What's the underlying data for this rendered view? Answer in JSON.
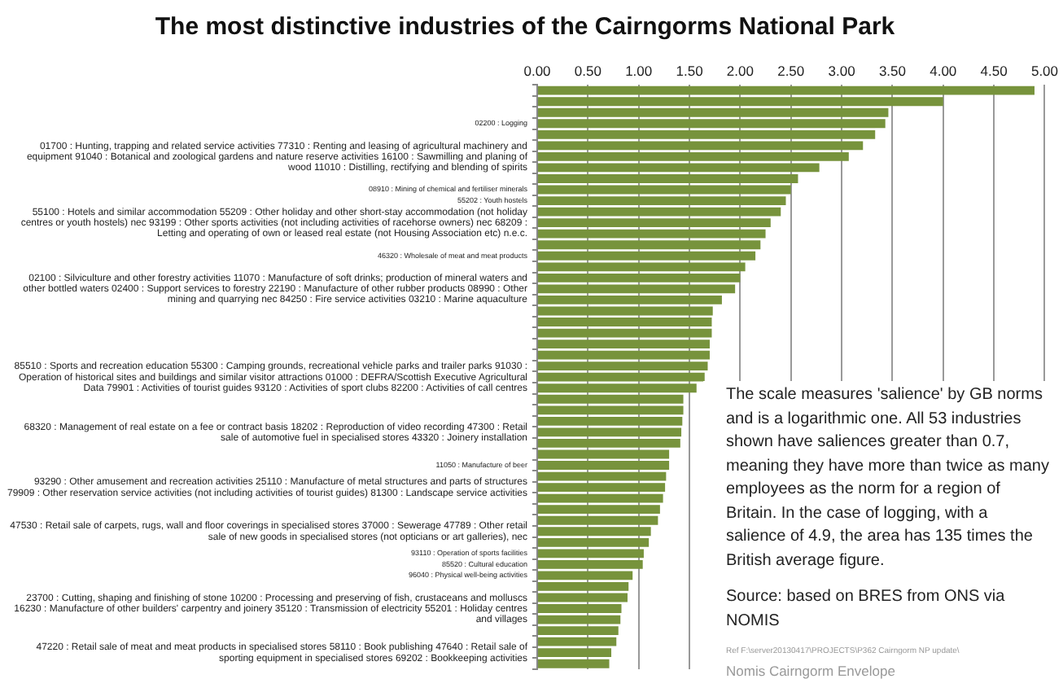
{
  "chart_data": {
    "type": "bar",
    "orientation": "horizontal",
    "title": "The most distinctive industries of the Cairngorms National Park",
    "categories": [
      null,
      null,
      null,
      "02200 : Logging",
      null,
      null,
      "01700 : Hunting, trapping and related service activities 77310 : Renting and leasing of agricultural machinery and equipment 91040 : Botanical and zoological gardens and nature reserve activities 16100 : Sawmilling and planing of wood 11010 : Distilling, rectifying and blending of spirits",
      null,
      null,
      "08910 : Mining of chemical and fertiliser minerals",
      "55202 : Youth hostels",
      null,
      "55100 : Hotels and similar accommodation 55209 : Other holiday and other short-stay accommodation (not holiday centres or youth hostels) nec 93199 : Other sports activities (not including activities of racehorse owners) nec 68209 : Letting and operating of own or leased real estate (not Housing Association etc) n.e.c.",
      null,
      null,
      "46320 : Wholesale of meat and meat products",
      null,
      null,
      "02100 : Silviculture and other forestry activities 11070 : Manufacture of soft drinks; production of mineral waters and other bottled waters 02400 : Support services to forestry 22190 : Manufacture of other rubber products 08990 : Other mining and quarrying nec 84250 : Fire service activities 03210 : Marine aquaculture",
      null,
      null,
      null,
      null,
      null,
      null,
      null,
      "85510 : Sports and recreation education 55300 : Camping grounds, recreational vehicle parks and trailer parks 91030 : Operation of historical sites and buildings and similar visitor attractions 01000 : DEFRA/Scottish Executive Agricultural Data 79901 : Activities of tourist guides 93120 : Activities of sport clubs 82200 : Activities of call centres",
      null,
      null,
      null,
      null,
      "68320 : Management of real estate on a fee or contract basis 18202 : Reproduction of video recording 47300 : Retail sale of automotive fuel in specialised stores 43320 : Joinery installation",
      null,
      null,
      "11050 : Manufacture of beer",
      null,
      "93290 : Other amusement and recreation activities 25110 : Manufacture of metal structures and parts of structures 79909 : Other reservation service activities (not including activities of tourist guides) 81300 : Landscape service activities",
      null,
      null,
      null,
      "47530 : Retail sale of carpets, rugs, wall and floor coverings in specialised stores 37000 : Sewerage 47789 : Other retail sale of new goods in specialised stores (not opticians or art galleries), nec",
      null,
      "93110 : Operation of sports facilities",
      "85520 : Cultural education",
      "96040 : Physical well-being activities",
      null,
      null,
      "23700 : Cutting, shaping and finishing of stone 10200 : Processing and preserving of fish, crustaceans and molluscs 16230 : Manufacture of other builders' carpentry and joinery 35120 : Transmission of electricity 55201 : Holiday centres and villages",
      null,
      null,
      null,
      "47220 : Retail sale of meat and meat products in specialised stores 58110 : Book publishing 47640 : Retail sale of sporting equipment in specialised stores 69202 : Bookkeeping activities",
      null
    ],
    "values": [
      4.9,
      4.0,
      3.46,
      3.43,
      3.33,
      3.21,
      3.07,
      2.78,
      2.57,
      2.5,
      2.45,
      2.4,
      2.3,
      2.25,
      2.2,
      2.15,
      2.05,
      2.0,
      1.95,
      1.82,
      1.73,
      1.72,
      1.72,
      1.7,
      1.7,
      1.68,
      1.65,
      1.57,
      1.44,
      1.44,
      1.43,
      1.42,
      1.41,
      1.3,
      1.3,
      1.27,
      1.26,
      1.24,
      1.21,
      1.19,
      1.12,
      1.1,
      1.05,
      1.04,
      0.94,
      0.9,
      0.89,
      0.83,
      0.82,
      0.8,
      0.78,
      0.73,
      0.71
    ],
    "color": "#77933c",
    "xlim": [
      0,
      5
    ],
    "xticks": [
      {
        "value": 0,
        "label": "0.00"
      },
      {
        "value": 0.5,
        "label": "0.50"
      },
      {
        "value": 1,
        "label": "1.00"
      },
      {
        "value": 1.5,
        "label": "1.50"
      },
      {
        "value": 2,
        "label": "2.00"
      },
      {
        "value": 2.5,
        "label": "2.50"
      },
      {
        "value": 3,
        "label": "3.00"
      },
      {
        "value": 3.5,
        "label": "3.50"
      },
      {
        "value": 4,
        "label": "4.00"
      },
      {
        "value": 4.5,
        "label": "4.50"
      },
      {
        "value": 5,
        "label": "5.00"
      }
    ],
    "grid": "x",
    "annotations": [
      "The scale measures 'salience' by GB norms and is a logarithmic one. All 53 industries shown have saliences greater than 0.7, meaning they have more than twice as many employees as the norm for a region of Britain. In the case of logging, with a salience of 4.9, the area has 135 times the British average figure.",
      "Source: based on BRES from ONS via NOMIS",
      "Ref F:\\server20130417\\PROJECTS\\P362 Cairngorm NP update\\",
      "Nomis Cairngorm Envelope"
    ]
  }
}
